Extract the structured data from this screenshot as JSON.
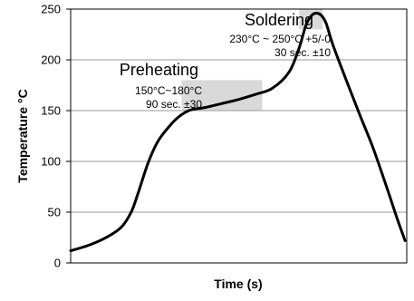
{
  "chart_data": {
    "type": "line",
    "xlabel": "Time (s)",
    "ylabel": "Temperature °C",
    "ylim": [
      0,
      250
    ],
    "y_ticks": [
      0,
      50,
      100,
      150,
      200,
      250
    ],
    "y_tick_labels": [
      "0",
      "50",
      "100",
      "150",
      "200",
      "250"
    ],
    "x_ticks_shown": false,
    "grid": {
      "horizontal": true,
      "vertical": false
    },
    "series": [
      {
        "x": [
          0,
          5,
          10,
          15,
          18,
          20,
          23,
          26,
          30,
          33,
          36,
          40,
          45,
          50,
          55,
          60,
          65,
          68,
          70,
          71.5,
          73,
          74.5,
          76,
          78,
          82,
          86,
          90,
          94,
          97,
          99.5
        ],
        "y": [
          12,
          17,
          24,
          35,
          50,
          68,
          98,
          120,
          137,
          146,
          151,
          153,
          157,
          161,
          166,
          172,
          188,
          212,
          234,
          243,
          246,
          244,
          236,
          215,
          180,
          146,
          113,
          75,
          45,
          22
        ],
        "color": "#000000"
      }
    ],
    "regions": [
      {
        "x_range": [
          33,
          57
        ],
        "y_range": [
          150,
          180
        ],
        "color": "#d9d9d9"
      },
      {
        "x_range": [
          68,
          75
        ],
        "y_range": [
          230,
          250
        ],
        "color": "#d9d9d9"
      }
    ],
    "annotations": [
      {
        "title": "Soldering",
        "lines": [
          "230°C ~ 250°C +5/-0",
          "30 sec. ±10"
        ]
      },
      {
        "title": "Preheating",
        "lines": [
          "150°C~180°C",
          "90 sec. ±30"
        ]
      }
    ]
  }
}
